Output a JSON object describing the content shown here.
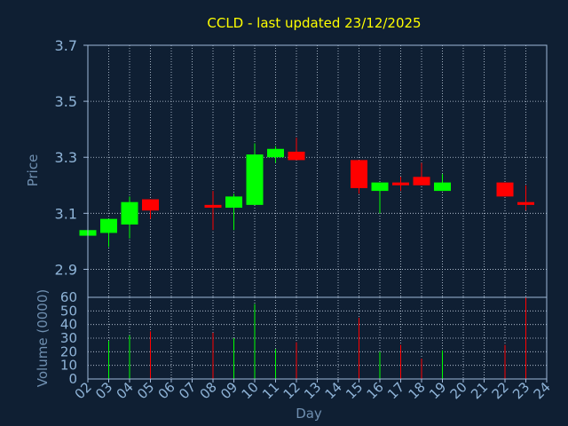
{
  "colors": {
    "background": "#0f1f33",
    "title": "#ffff00",
    "axis_text": "#8fb4d8",
    "label_text": "#6f8fb0",
    "frame": "#9fb8d8",
    "grid": "#c8d4e4",
    "up": "#00ff00",
    "down": "#ff0000"
  },
  "chart_data": {
    "type": "candlestick",
    "title": "CCLD - last updated 23/12/2025",
    "price_panel": {
      "ylabel": "Price",
      "ylim": [
        2.8,
        3.7
      ],
      "yticks": [
        "2.9",
        "3.1",
        "3.3",
        "3.5",
        "3.7"
      ],
      "grid": true
    },
    "volume_panel": {
      "ylabel": "Volume (0000)",
      "ylim": [
        0,
        60
      ],
      "yticks": [
        "0",
        "10",
        "20",
        "30",
        "40",
        "50",
        "60"
      ],
      "grid": true
    },
    "xlabel": "Day",
    "x_ticks": [
      "02",
      "03",
      "04",
      "05",
      "06",
      "07",
      "08",
      "09",
      "10",
      "11",
      "12",
      "13",
      "14",
      "15",
      "16",
      "17",
      "18",
      "19",
      "20",
      "21",
      "22",
      "23",
      "24"
    ],
    "candles": [
      {
        "day": "02",
        "open": 3.02,
        "high": 3.04,
        "low": 3.02,
        "close": 3.04,
        "volume": 0
      },
      {
        "day": "03",
        "open": 3.03,
        "high": 3.08,
        "low": 2.98,
        "close": 3.08,
        "volume": 28
      },
      {
        "day": "04",
        "open": 3.06,
        "high": 3.16,
        "low": 3.01,
        "close": 3.14,
        "volume": 32
      },
      {
        "day": "05",
        "open": 3.15,
        "high": 3.15,
        "low": 3.08,
        "close": 3.11,
        "volume": 35
      },
      {
        "day": "08",
        "open": 3.13,
        "high": 3.18,
        "low": 3.04,
        "close": 3.12,
        "volume": 34
      },
      {
        "day": "09",
        "open": 3.12,
        "high": 3.17,
        "low": 3.04,
        "close": 3.16,
        "volume": 30
      },
      {
        "day": "10",
        "open": 3.13,
        "high": 3.35,
        "low": 3.13,
        "close": 3.31,
        "volume": 55
      },
      {
        "day": "11",
        "open": 3.3,
        "high": 3.34,
        "low": 3.28,
        "close": 3.33,
        "volume": 22
      },
      {
        "day": "12",
        "open": 3.32,
        "high": 3.37,
        "low": 3.29,
        "close": 3.29,
        "volume": 27
      },
      {
        "day": "15",
        "open": 3.29,
        "high": 3.29,
        "low": 3.17,
        "close": 3.19,
        "volume": 45
      },
      {
        "day": "16",
        "open": 3.18,
        "high": 3.21,
        "low": 3.1,
        "close": 3.21,
        "volume": 20
      },
      {
        "day": "17",
        "open": 3.21,
        "high": 3.23,
        "low": 3.18,
        "close": 3.2,
        "volume": 25
      },
      {
        "day": "18",
        "open": 3.23,
        "high": 3.28,
        "low": 3.2,
        "close": 3.2,
        "volume": 15
      },
      {
        "day": "19",
        "open": 3.18,
        "high": 3.24,
        "low": 3.18,
        "close": 3.21,
        "volume": 21
      },
      {
        "day": "22",
        "open": 3.21,
        "high": 3.21,
        "low": 3.16,
        "close": 3.16,
        "volume": 25
      },
      {
        "day": "23",
        "open": 3.14,
        "high": 3.2,
        "low": 3.11,
        "close": 3.13,
        "volume": 60
      }
    ]
  }
}
